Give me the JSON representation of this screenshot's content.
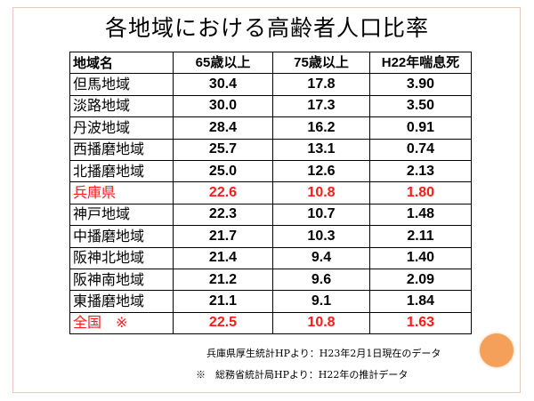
{
  "title": "各地域における高齢者人口比率",
  "table": {
    "headers": [
      "地域名",
      "65歳以上",
      "75歳以上",
      "H22年喘息死"
    ],
    "rows": [
      {
        "name": "但馬地域",
        "v65": "30.4",
        "v75": "17.8",
        "asthma": "3.90",
        "highlight": false
      },
      {
        "name": "淡路地域",
        "v65": "30.0",
        "v75": "17.3",
        "asthma": "3.50",
        "highlight": false
      },
      {
        "name": "丹波地域",
        "v65": "28.4",
        "v75": "16.2",
        "asthma": "0.91",
        "highlight": false
      },
      {
        "name": "西播磨地域",
        "v65": "25.7",
        "v75": "13.1",
        "asthma": "0.74",
        "highlight": false
      },
      {
        "name": "北播磨地域",
        "v65": "25.0",
        "v75": "12.6",
        "asthma": "2.13",
        "highlight": false
      },
      {
        "name": "兵庫県",
        "v65": "22.6",
        "v75": "10.8",
        "asthma": "1.80",
        "highlight": true
      },
      {
        "name": "神戸地域",
        "v65": "22.3",
        "v75": "10.7",
        "asthma": "1.48",
        "highlight": false
      },
      {
        "name": "中播磨地域",
        "v65": "21.7",
        "v75": "10.3",
        "asthma": "2.11",
        "highlight": false
      },
      {
        "name": "阪神北地域",
        "v65": "21.4",
        "v75": "9.4",
        "asthma": "1.40",
        "highlight": false
      },
      {
        "name": "阪神南地域",
        "v65": "21.2",
        "v75": "9.6",
        "asthma": "2.09",
        "highlight": false
      },
      {
        "name": "東播磨地域",
        "v65": "21.1",
        "v75": "9.1",
        "asthma": "1.84",
        "highlight": false
      },
      {
        "name": "全国　※",
        "v65": "22.5",
        "v75": "10.8",
        "asthma": "1.63",
        "highlight": true
      }
    ]
  },
  "notes": {
    "source1": "兵庫県厚生統計HPより：H23年2月1日現在のデータ",
    "source2": "※　総務省統計局HPより：H22年の推計データ"
  },
  "colors": {
    "highlight": "#ff1a1a",
    "accent_circle": "#f5a05a"
  }
}
